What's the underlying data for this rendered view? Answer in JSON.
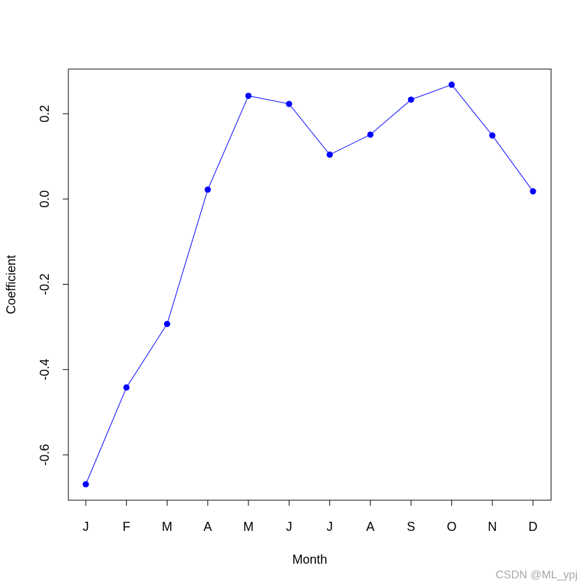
{
  "chart_data": {
    "type": "line",
    "categories": [
      "J",
      "F",
      "M",
      "A",
      "M",
      "J",
      "J",
      "A",
      "S",
      "O",
      "N",
      "D"
    ],
    "series": [
      {
        "values": [
          -0.669,
          -0.442,
          -0.293,
          0.022,
          0.242,
          0.223,
          0.104,
          0.151,
          0.233,
          0.268,
          0.149,
          0.018
        ]
      }
    ],
    "xlabel": "Month",
    "ylabel": "Coefficient",
    "ylim": [
      -0.7,
      0.3
    ],
    "yticks": [
      -0.6,
      -0.4,
      -0.2,
      0.0,
      0.2
    ],
    "ytick_labels": [
      "-0.6",
      "-0.4",
      "-0.2",
      "0.0",
      "0.2"
    ],
    "grid": false,
    "line_color": "#0000ff",
    "marker_color": "#0000ff"
  },
  "watermark": "CSDN @ML_ypj"
}
